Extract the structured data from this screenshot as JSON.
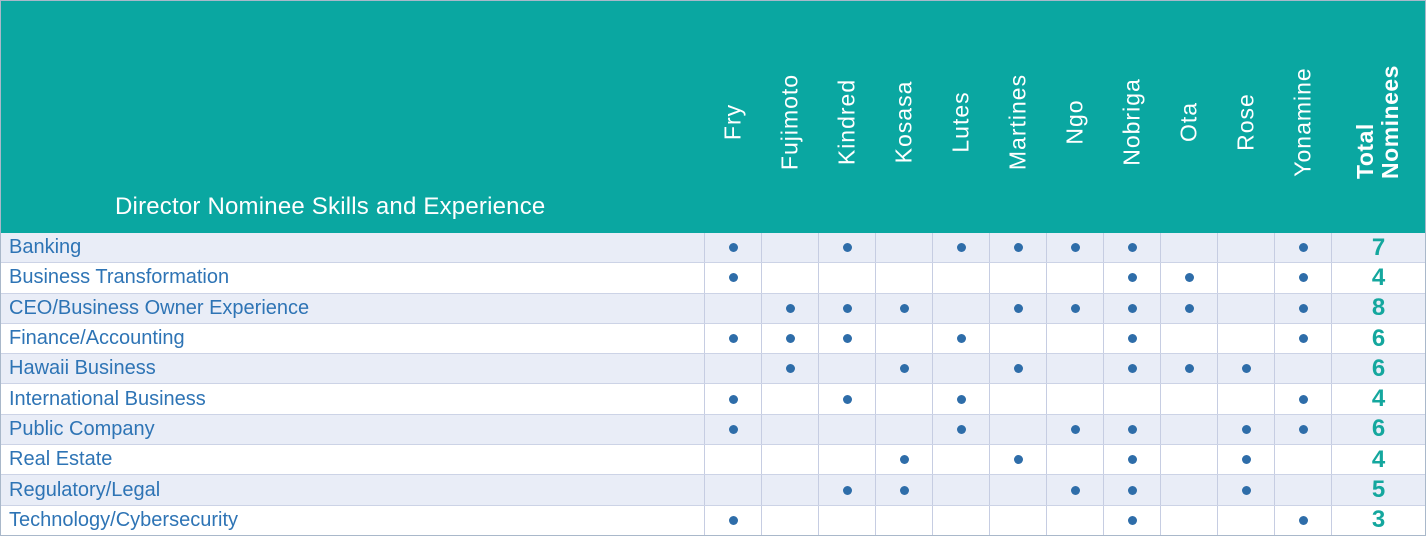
{
  "chart_data": {
    "type": "table",
    "title": "Director Nominee Skills and Experience",
    "columns": [
      "Fry",
      "Fujimoto",
      "Kindred",
      "Kosasa",
      "Lutes",
      "Martines",
      "Ngo",
      "Nobriga",
      "Ota",
      "Rose",
      "Yonamine",
      "Total Nominees"
    ],
    "total_header_lines": [
      "Total",
      "Nominees"
    ],
    "mark_glyph": "dot",
    "rows": [
      {
        "skill": "Banking",
        "marks": [
          1,
          0,
          1,
          0,
          1,
          1,
          1,
          1,
          0,
          0,
          1
        ],
        "total": "7"
      },
      {
        "skill": "Business Transformation",
        "marks": [
          1,
          0,
          0,
          0,
          0,
          0,
          0,
          1,
          1,
          0,
          1
        ],
        "total": "4"
      },
      {
        "skill": "CEO/Business Owner Experience",
        "marks": [
          0,
          1,
          1,
          1,
          0,
          1,
          1,
          1,
          1,
          0,
          1
        ],
        "total": "8"
      },
      {
        "skill": "Finance/Accounting",
        "marks": [
          1,
          1,
          1,
          0,
          1,
          0,
          0,
          1,
          0,
          0,
          1
        ],
        "total": "6"
      },
      {
        "skill": "Hawaii Business",
        "marks": [
          0,
          1,
          0,
          1,
          0,
          1,
          0,
          1,
          1,
          1,
          0
        ],
        "total": "6"
      },
      {
        "skill": "International Business",
        "marks": [
          1,
          0,
          1,
          0,
          1,
          0,
          0,
          0,
          0,
          0,
          1
        ],
        "total": "4"
      },
      {
        "skill": "Public Company",
        "marks": [
          1,
          0,
          0,
          0,
          1,
          0,
          1,
          1,
          0,
          1,
          1
        ],
        "total": "6"
      },
      {
        "skill": "Real Estate",
        "marks": [
          0,
          0,
          0,
          1,
          0,
          1,
          0,
          1,
          0,
          1,
          0
        ],
        "total": "4"
      },
      {
        "skill": "Regulatory/Legal",
        "marks": [
          0,
          0,
          1,
          1,
          0,
          0,
          1,
          1,
          0,
          1,
          0
        ],
        "total": "5"
      },
      {
        "skill": "Technology/Cybersecurity",
        "marks": [
          1,
          0,
          0,
          0,
          0,
          0,
          0,
          1,
          0,
          0,
          1
        ],
        "total": "3"
      }
    ],
    "legend_position": "none",
    "grid": true
  },
  "colors": {
    "header_background": "#0aa7a1",
    "header_text": "#ffffff",
    "skill_label_blue": "#2e74b5",
    "dot_blue": "#2e6da9",
    "total_number_teal": "#14a79e",
    "row_alt_background": "#e9edf7",
    "row_background": "#ffffff",
    "grid_line": "#c6cde2",
    "row_line": "#ccd3e6",
    "outer_border": "#a9b8ca"
  }
}
